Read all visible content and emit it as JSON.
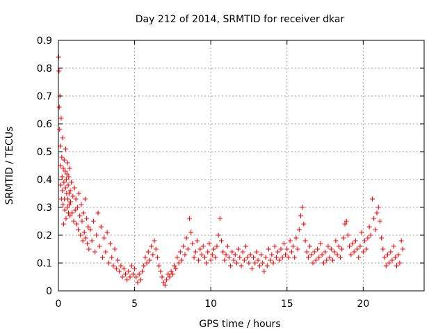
{
  "chart_data": {
    "type": "scatter",
    "title": "Day 212 of 2014, SRMTID for receiver dkar",
    "xlabel": "GPS time / hours",
    "ylabel": "SRMTID / TECUs",
    "xlim": [
      0,
      24
    ],
    "ylim": [
      0,
      0.9
    ],
    "xticks": [
      0,
      5,
      10,
      15,
      20
    ],
    "xtick_labels": [
      "0",
      "5",
      "10",
      "15",
      "20"
    ],
    "yticks": [
      0,
      0.1,
      0.2,
      0.3,
      0.4,
      0.5,
      0.6,
      0.7,
      0.8,
      0.9
    ],
    "ytick_labels": [
      "0",
      "0.1",
      "0.2",
      "0.3",
      "0.4",
      "0.5",
      "0.6",
      "0.7",
      "0.8",
      "0.9"
    ],
    "grid": true,
    "marker": "plus",
    "color": "#ff0000",
    "series": [
      {
        "name": "dkar",
        "points": [
          [
            0.02,
            0.84
          ],
          [
            0.04,
            0.79
          ],
          [
            0.06,
            0.66
          ],
          [
            0.08,
            0.58
          ],
          [
            0.1,
            0.7
          ],
          [
            0.12,
            0.52
          ],
          [
            0.14,
            0.45
          ],
          [
            0.16,
            0.38
          ],
          [
            0.18,
            0.62
          ],
          [
            0.2,
            0.33
          ],
          [
            0.22,
            0.48
          ],
          [
            0.24,
            0.41
          ],
          [
            0.26,
            0.36
          ],
          [
            0.28,
            0.55
          ],
          [
            0.3,
            0.31
          ],
          [
            0.32,
            0.44
          ],
          [
            0.34,
            0.24
          ],
          [
            0.36,
            0.39
          ],
          [
            0.38,
            0.47
          ],
          [
            0.4,
            0.33
          ],
          [
            0.42,
            0.29
          ],
          [
            0.44,
            0.43
          ],
          [
            0.46,
            0.37
          ],
          [
            0.48,
            0.51
          ],
          [
            0.5,
            0.26
          ],
          [
            0.52,
            0.4
          ],
          [
            0.54,
            0.35
          ],
          [
            0.56,
            0.42
          ],
          [
            0.58,
            0.3
          ],
          [
            0.6,
            0.46
          ],
          [
            0.62,
            0.33
          ],
          [
            0.64,
            0.38
          ],
          [
            0.66,
            0.28
          ],
          [
            0.68,
            0.41
          ],
          [
            0.7,
            0.35
          ],
          [
            0.72,
            0.31
          ],
          [
            0.74,
            0.44
          ],
          [
            0.76,
            0.27
          ],
          [
            0.78,
            0.36
          ],
          [
            0.8,
            0.32
          ],
          [
            0.85,
            0.39
          ],
          [
            0.9,
            0.28
          ],
          [
            0.95,
            0.34
          ],
          [
            1.0,
            0.25
          ],
          [
            1.05,
            0.37
          ],
          [
            1.1,
            0.29
          ],
          [
            1.15,
            0.33
          ],
          [
            1.2,
            0.24
          ],
          [
            1.25,
            0.3
          ],
          [
            1.3,
            0.22
          ],
          [
            1.35,
            0.35
          ],
          [
            1.4,
            0.27
          ],
          [
            1.45,
            0.2
          ],
          [
            1.5,
            0.31
          ],
          [
            1.55,
            0.25
          ],
          [
            1.6,
            0.18
          ],
          [
            1.65,
            0.28
          ],
          [
            1.7,
            0.21
          ],
          [
            1.75,
            0.33
          ],
          [
            1.8,
            0.19
          ],
          [
            1.85,
            0.26
          ],
          [
            1.9,
            0.17
          ],
          [
            1.95,
            0.23
          ],
          [
            2.0,
            0.15
          ],
          [
            2.1,
            0.22
          ],
          [
            2.2,
            0.18
          ],
          [
            2.3,
            0.25
          ],
          [
            2.4,
            0.14
          ],
          [
            2.5,
            0.2
          ],
          [
            2.6,
            0.28
          ],
          [
            2.7,
            0.16
          ],
          [
            2.8,
            0.23
          ],
          [
            2.9,
            0.12
          ],
          [
            3.0,
            0.19
          ],
          [
            3.1,
            0.14
          ],
          [
            3.2,
            0.21
          ],
          [
            3.3,
            0.1
          ],
          [
            3.4,
            0.17
          ],
          [
            3.5,
            0.12
          ],
          [
            3.6,
            0.09
          ],
          [
            3.7,
            0.15
          ],
          [
            3.8,
            0.08
          ],
          [
            3.9,
            0.11
          ],
          [
            4.0,
            0.07
          ],
          [
            4.1,
            0.09
          ],
          [
            4.2,
            0.05
          ],
          [
            4.3,
            0.08
          ],
          [
            4.4,
            0.06
          ],
          [
            4.5,
            0.04
          ],
          [
            4.6,
            0.07
          ],
          [
            4.7,
            0.05
          ],
          [
            4.8,
            0.09
          ],
          [
            4.9,
            0.06
          ],
          [
            5.0,
            0.08
          ],
          [
            5.1,
            0.05
          ],
          [
            5.2,
            0.03
          ],
          [
            5.3,
            0.06
          ],
          [
            5.4,
            0.04
          ],
          [
            5.5,
            0.07
          ],
          [
            5.6,
            0.09
          ],
          [
            5.7,
            0.12
          ],
          [
            5.8,
            0.1
          ],
          [
            5.9,
            0.14
          ],
          [
            6.0,
            0.11
          ],
          [
            6.1,
            0.16
          ],
          [
            6.2,
            0.13
          ],
          [
            6.3,
            0.18
          ],
          [
            6.4,
            0.15
          ],
          [
            6.5,
            0.12
          ],
          [
            6.6,
            0.09
          ],
          [
            6.7,
            0.07
          ],
          [
            6.8,
            0.05
          ],
          [
            6.9,
            0.03
          ],
          [
            7.0,
            0.02
          ],
          [
            7.1,
            0.04
          ],
          [
            7.2,
            0.06
          ],
          [
            7.3,
            0.05
          ],
          [
            7.4,
            0.07
          ],
          [
            7.5,
            0.06
          ],
          [
            7.6,
            0.09
          ],
          [
            7.7,
            0.08
          ],
          [
            7.8,
            0.12
          ],
          [
            7.9,
            0.1
          ],
          [
            8.0,
            0.14
          ],
          [
            8.1,
            0.11
          ],
          [
            8.2,
            0.16
          ],
          [
            8.3,
            0.13
          ],
          [
            8.4,
            0.19
          ],
          [
            8.5,
            0.15
          ],
          [
            8.6,
            0.26
          ],
          [
            8.7,
            0.21
          ],
          [
            8.8,
            0.17
          ],
          [
            8.9,
            0.12
          ],
          [
            9.0,
            0.14
          ],
          [
            9.1,
            0.18
          ],
          [
            9.2,
            0.11
          ],
          [
            9.3,
            0.15
          ],
          [
            9.4,
            0.13
          ],
          [
            9.5,
            0.16
          ],
          [
            9.6,
            0.12
          ],
          [
            9.7,
            0.1
          ],
          [
            9.8,
            0.14
          ],
          [
            9.9,
            0.17
          ],
          [
            10.0,
            0.11
          ],
          [
            10.1,
            0.13
          ],
          [
            10.2,
            0.15
          ],
          [
            10.3,
            0.12
          ],
          [
            10.4,
            0.16
          ],
          [
            10.5,
            0.2
          ],
          [
            10.6,
            0.26
          ],
          [
            10.7,
            0.18
          ],
          [
            10.8,
            0.14
          ],
          [
            10.9,
            0.11
          ],
          [
            11.0,
            0.13
          ],
          [
            11.1,
            0.16
          ],
          [
            11.2,
            0.12
          ],
          [
            11.3,
            0.09
          ],
          [
            11.4,
            0.14
          ],
          [
            11.5,
            0.11
          ],
          [
            11.6,
            0.13
          ],
          [
            11.7,
            0.1
          ],
          [
            11.8,
            0.15
          ],
          [
            11.9,
            0.12
          ],
          [
            12.0,
            0.09
          ],
          [
            12.1,
            0.14
          ],
          [
            12.2,
            0.11
          ],
          [
            12.3,
            0.16
          ],
          [
            12.4,
            0.12
          ],
          [
            12.5,
            0.1
          ],
          [
            12.6,
            0.13
          ],
          [
            12.7,
            0.08
          ],
          [
            12.8,
            0.12
          ],
          [
            12.9,
            0.1
          ],
          [
            13.0,
            0.14
          ],
          [
            13.1,
            0.11
          ],
          [
            13.2,
            0.09
          ],
          [
            13.3,
            0.13
          ],
          [
            13.4,
            0.1
          ],
          [
            13.5,
            0.07
          ],
          [
            13.6,
            0.12
          ],
          [
            13.7,
            0.09
          ],
          [
            13.8,
            0.15
          ],
          [
            13.9,
            0.11
          ],
          [
            14.0,
            0.13
          ],
          [
            14.1,
            0.1
          ],
          [
            14.2,
            0.16
          ],
          [
            14.3,
            0.12
          ],
          [
            14.4,
            0.14
          ],
          [
            14.5,
            0.11
          ],
          [
            14.6,
            0.15
          ],
          [
            14.7,
            0.12
          ],
          [
            14.8,
            0.17
          ],
          [
            14.9,
            0.13
          ],
          [
            15.0,
            0.15
          ],
          [
            15.1,
            0.12
          ],
          [
            15.2,
            0.18
          ],
          [
            15.3,
            0.14
          ],
          [
            15.4,
            0.16
          ],
          [
            15.5,
            0.12
          ],
          [
            15.6,
            0.19
          ],
          [
            15.7,
            0.15
          ],
          [
            15.8,
            0.22
          ],
          [
            15.9,
            0.27
          ],
          [
            16.0,
            0.3
          ],
          [
            16.1,
            0.24
          ],
          [
            16.2,
            0.18
          ],
          [
            16.3,
            0.14
          ],
          [
            16.4,
            0.12
          ],
          [
            16.5,
            0.16
          ],
          [
            16.6,
            0.13
          ],
          [
            16.7,
            0.1
          ],
          [
            16.8,
            0.14
          ],
          [
            16.9,
            0.11
          ],
          [
            17.0,
            0.15
          ],
          [
            17.1,
            0.12
          ],
          [
            17.2,
            0.17
          ],
          [
            17.3,
            0.13
          ],
          [
            17.4,
            0.1
          ],
          [
            17.5,
            0.14
          ],
          [
            17.6,
            0.11
          ],
          [
            17.7,
            0.16
          ],
          [
            17.8,
            0.12
          ],
          [
            17.9,
            0.15
          ],
          [
            18.0,
            0.11
          ],
          [
            18.1,
            0.14
          ],
          [
            18.2,
            0.18
          ],
          [
            18.3,
            0.13
          ],
          [
            18.4,
            0.16
          ],
          [
            18.5,
            0.12
          ],
          [
            18.6,
            0.15
          ],
          [
            18.7,
            0.19
          ],
          [
            18.8,
            0.24
          ],
          [
            18.9,
            0.25
          ],
          [
            19.0,
            0.2
          ],
          [
            19.1,
            0.16
          ],
          [
            19.2,
            0.13
          ],
          [
            19.3,
            0.17
          ],
          [
            19.4,
            0.14
          ],
          [
            19.5,
            0.18
          ],
          [
            19.6,
            0.15
          ],
          [
            19.7,
            0.12
          ],
          [
            19.8,
            0.16
          ],
          [
            19.9,
            0.21
          ],
          [
            20.0,
            0.14
          ],
          [
            20.1,
            0.18
          ],
          [
            20.2,
            0.15
          ],
          [
            20.3,
            0.19
          ],
          [
            20.4,
            0.23
          ],
          [
            20.5,
            0.2
          ],
          [
            20.6,
            0.33
          ],
          [
            20.7,
            0.26
          ],
          [
            20.8,
            0.22
          ],
          [
            20.9,
            0.28
          ],
          [
            21.0,
            0.3
          ],
          [
            21.1,
            0.25
          ],
          [
            21.2,
            0.19
          ],
          [
            21.3,
            0.15
          ],
          [
            21.4,
            0.12
          ],
          [
            21.5,
            0.09
          ],
          [
            21.6,
            0.13
          ],
          [
            21.7,
            0.1
          ],
          [
            21.8,
            0.14
          ],
          [
            21.9,
            0.11
          ],
          [
            22.0,
            0.16
          ],
          [
            22.1,
            0.12
          ],
          [
            22.2,
            0.09
          ],
          [
            22.3,
            0.13
          ],
          [
            22.4,
            0.1
          ],
          [
            22.5,
            0.18
          ],
          [
            22.6,
            0.15
          ]
        ]
      }
    ]
  }
}
